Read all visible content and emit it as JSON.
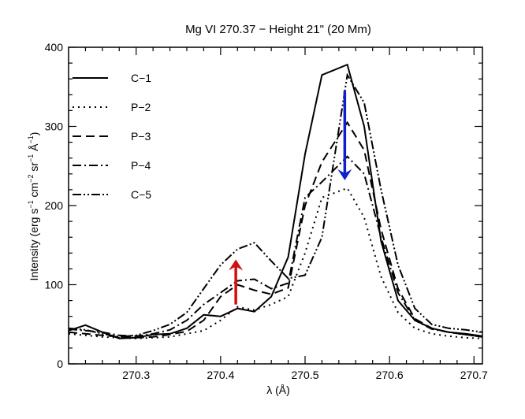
{
  "chart_data": {
    "type": "line",
    "title": "Mg VI 270.37 − Height 21\" (20 Mm)",
    "xlabel": "λ (Å)",
    "ylabel_parts": [
      "Intensity (erg s",
      "−1",
      " cm",
      "−2",
      " sr",
      "−1",
      " Å",
      "−1",
      ")"
    ],
    "xlim": [
      270.22,
      270.71
    ],
    "ylim": [
      0,
      400
    ],
    "x_ticks": [
      270.3,
      270.4,
      270.5,
      270.6,
      270.7
    ],
    "x_tick_labels": [
      "270.3",
      "270.4",
      "270.5",
      "270.6",
      "270.7"
    ],
    "y_ticks": [
      0,
      100,
      200,
      300,
      400
    ],
    "y_tick_labels": [
      "0",
      "100",
      "200",
      "300",
      "400"
    ],
    "legend_position": "top-left",
    "series": [
      {
        "name": "C−1",
        "dash": "solid",
        "x": [
          270.22,
          270.24,
          270.26,
          270.28,
          270.3,
          270.32,
          270.34,
          270.36,
          270.38,
          270.4,
          270.42,
          270.44,
          270.46,
          270.48,
          270.5,
          270.52,
          270.55,
          270.57,
          270.59,
          270.61,
          270.63,
          270.65,
          270.67,
          270.69,
          270.71
        ],
        "y": [
          42,
          49,
          40,
          32,
          33,
          37,
          38,
          45,
          62,
          60,
          70,
          66,
          85,
          135,
          265,
          365,
          378,
          300,
          155,
          80,
          55,
          45,
          40,
          38,
          35
        ]
      },
      {
        "name": "P−2",
        "dash": "dotted",
        "x": [
          270.22,
          270.24,
          270.26,
          270.28,
          270.3,
          270.32,
          270.34,
          270.36,
          270.38,
          270.4,
          270.42,
          270.44,
          270.46,
          270.48,
          270.5,
          270.52,
          270.55,
          270.57,
          270.59,
          270.61,
          270.63,
          270.65,
          270.67,
          270.69,
          270.71
        ],
        "y": [
          38,
          36,
          34,
          33,
          32,
          33,
          34,
          38,
          42,
          55,
          72,
          68,
          75,
          85,
          140,
          210,
          222,
          185,
          110,
          65,
          45,
          38,
          35,
          33,
          32
        ]
      },
      {
        "name": "P−3",
        "dash": "dashed",
        "x": [
          270.22,
          270.24,
          270.26,
          270.28,
          270.3,
          270.32,
          270.34,
          270.36,
          270.38,
          270.4,
          270.42,
          270.44,
          270.46,
          270.48,
          270.5,
          270.52,
          270.55,
          270.57,
          270.59,
          270.61,
          270.63,
          270.65,
          270.67,
          270.69,
          270.71
        ],
        "y": [
          40,
          38,
          36,
          34,
          33,
          34,
          37,
          41,
          55,
          85,
          100,
          93,
          88,
          96,
          200,
          255,
          305,
          270,
          170,
          95,
          57,
          45,
          40,
          37,
          34
        ]
      },
      {
        "name": "P−4",
        "dash": "dashdot",
        "x": [
          270.22,
          270.24,
          270.26,
          270.28,
          270.3,
          270.32,
          270.34,
          270.36,
          270.38,
          270.4,
          270.42,
          270.44,
          270.46,
          270.48,
          270.5,
          270.52,
          270.55,
          270.57,
          270.59,
          270.61,
          270.63,
          270.65,
          270.67,
          270.69,
          270.71
        ],
        "y": [
          44,
          42,
          40,
          36,
          35,
          38,
          43,
          55,
          75,
          90,
          105,
          107,
          95,
          102,
          210,
          230,
          262,
          240,
          160,
          90,
          55,
          44,
          40,
          37,
          34
        ]
      },
      {
        "name": "C−5",
        "dash": "dashdotdot",
        "x": [
          270.22,
          270.24,
          270.26,
          270.28,
          270.3,
          270.32,
          270.34,
          270.36,
          270.38,
          270.4,
          270.42,
          270.44,
          270.46,
          270.48,
          270.5,
          270.52,
          270.55,
          270.57,
          270.59,
          270.61,
          270.63,
          270.65,
          270.67,
          270.69,
          270.71
        ],
        "y": [
          45,
          43,
          38,
          34,
          36,
          42,
          50,
          65,
          95,
          125,
          145,
          153,
          130,
          108,
          112,
          160,
          365,
          330,
          220,
          125,
          70,
          50,
          45,
          43,
          40
        ]
      }
    ],
    "annotations": [
      {
        "type": "arrow",
        "color": "#d01010",
        "x": 270.418,
        "from_y": 75,
        "to_y": 132,
        "direction": "up"
      },
      {
        "type": "arrow",
        "color": "#1020cc",
        "x": 270.547,
        "from_y": 345,
        "to_y": 232,
        "direction": "down"
      }
    ]
  }
}
